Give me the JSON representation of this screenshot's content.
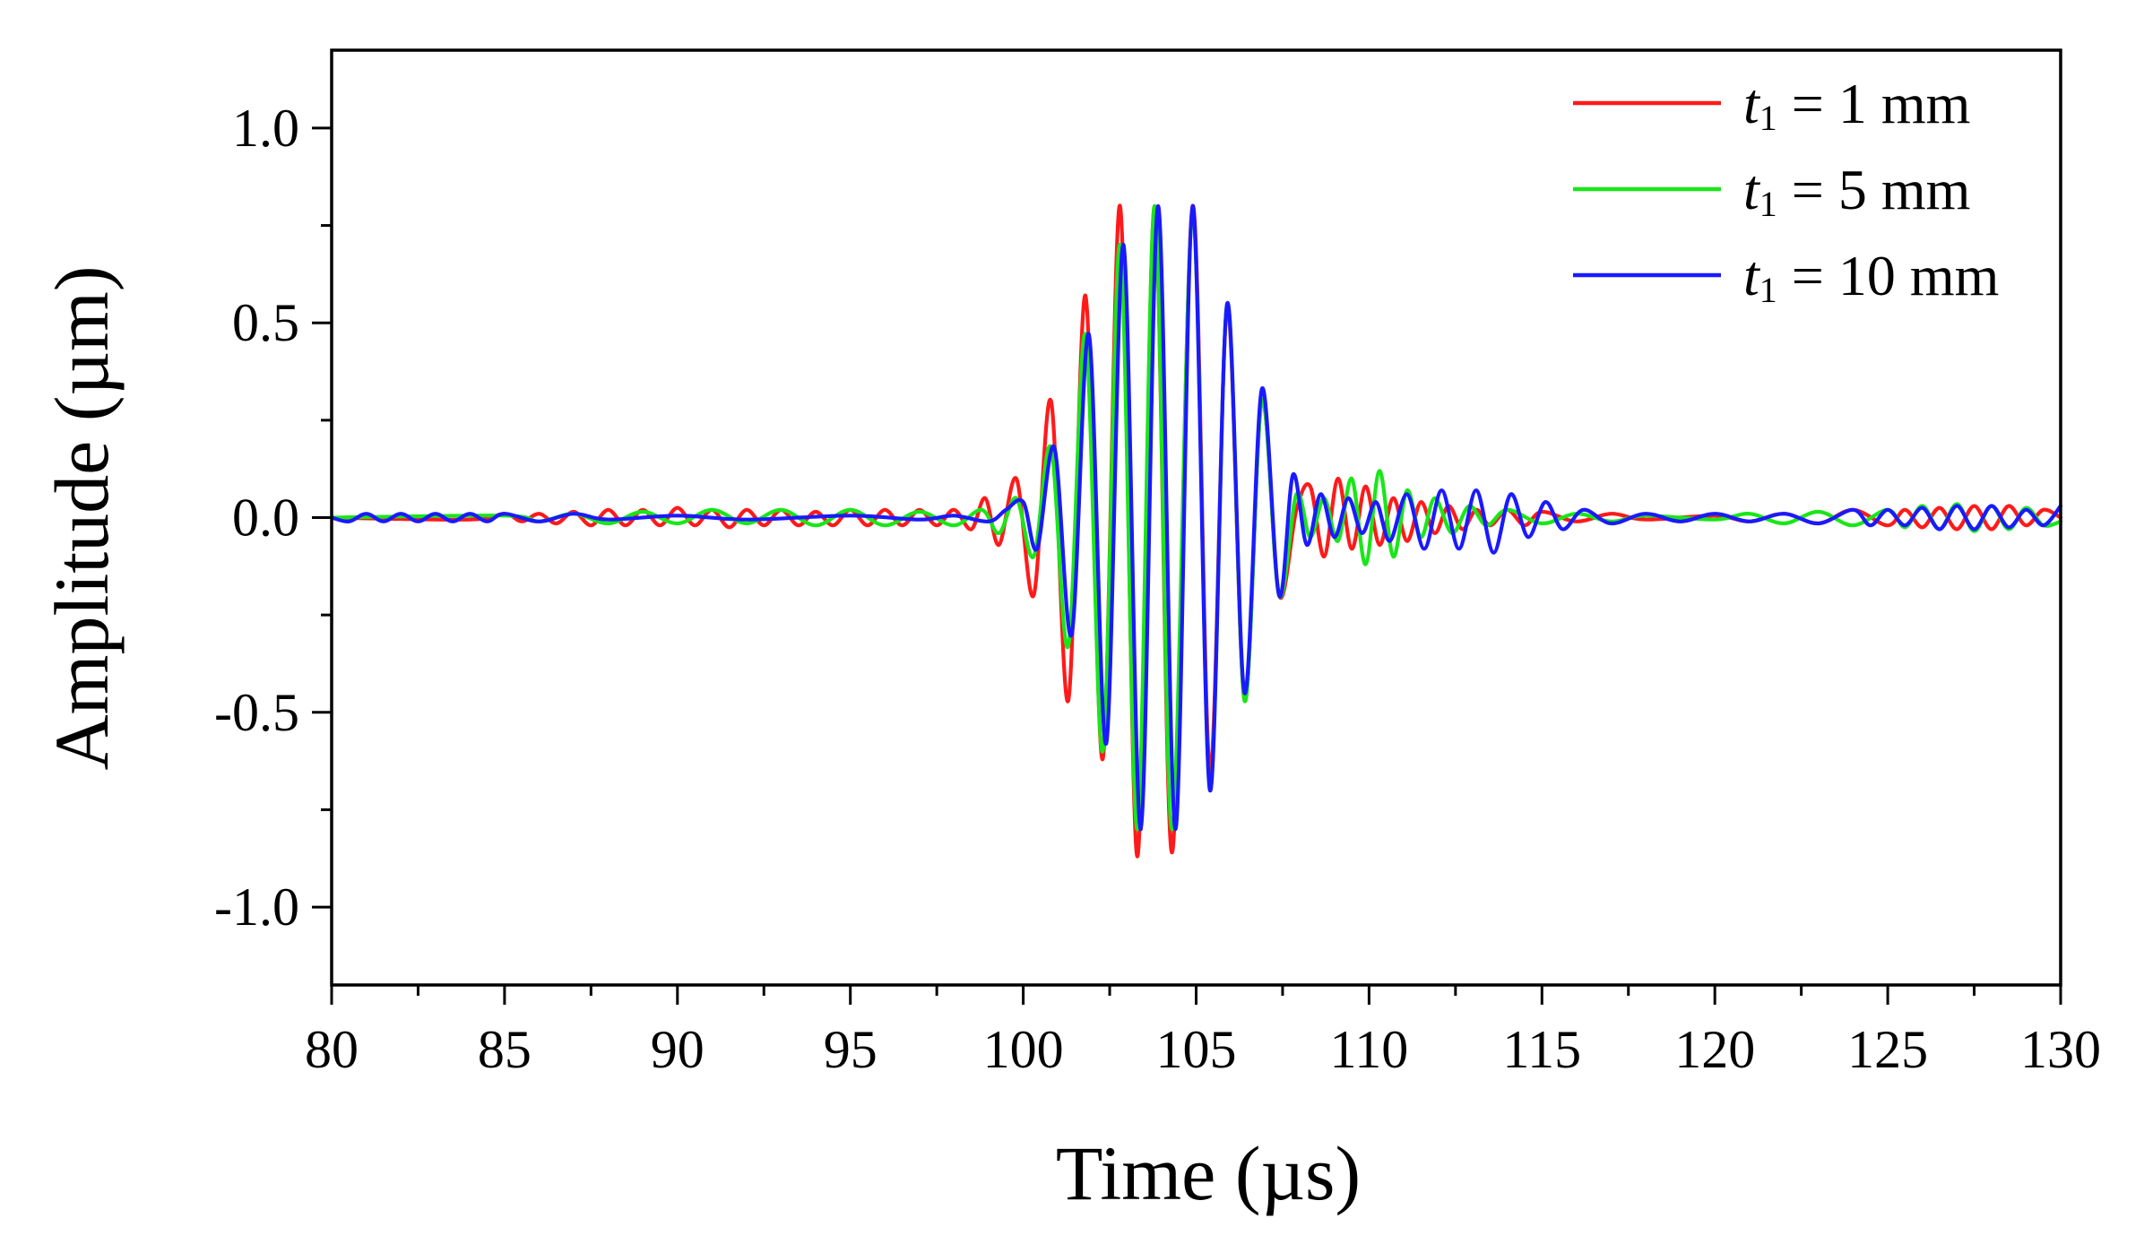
{
  "chart_data": {
    "type": "line",
    "xlabel": "Time (µs)",
    "ylabel": "Amplitude (µm)",
    "xlim": [
      80,
      130
    ],
    "ylim": [
      -1.2,
      1.2
    ],
    "x_ticks": [
      80,
      85,
      90,
      95,
      100,
      105,
      110,
      115,
      120,
      125,
      130
    ],
    "x_tick_labels": [
      "80",
      "85",
      "90",
      "95",
      "100",
      "105",
      "110",
      "115",
      "120",
      "125",
      "130"
    ],
    "y_ticks": [
      1.0,
      0.5,
      0.0,
      -0.5,
      -1.0
    ],
    "y_tick_labels": [
      "1.0",
      "0.5",
      "0.0",
      "-0.5",
      "-1.0"
    ],
    "grid": false,
    "legend_position": "top-right",
    "series": [
      {
        "name": "t1 = 1 mm",
        "legend": {
          "symbol": "t",
          "subscript": "1",
          "text": " = 1 mm"
        },
        "color": "#ff1a1a",
        "points": [
          [
            80,
            0.0
          ],
          [
            84,
            -0.005
          ],
          [
            85,
            0.01
          ],
          [
            85.5,
            -0.01
          ],
          [
            86,
            0.01
          ],
          [
            86.5,
            -0.015
          ],
          [
            87,
            0.015
          ],
          [
            87.5,
            -0.02
          ],
          [
            88,
            0.02
          ],
          [
            88.5,
            -0.02
          ],
          [
            89,
            0.02
          ],
          [
            89.5,
            -0.02
          ],
          [
            90,
            0.025
          ],
          [
            90.5,
            -0.02
          ],
          [
            91,
            0.02
          ],
          [
            91.5,
            -0.025
          ],
          [
            92,
            0.02
          ],
          [
            92.5,
            -0.02
          ],
          [
            93,
            0.02
          ],
          [
            93.5,
            -0.02
          ],
          [
            94,
            0.015
          ],
          [
            94.5,
            -0.02
          ],
          [
            95,
            0.02
          ],
          [
            95.5,
            -0.02
          ],
          [
            96,
            0.02
          ],
          [
            96.5,
            -0.02
          ],
          [
            97,
            0.02
          ],
          [
            97.5,
            -0.02
          ],
          [
            98,
            0.02
          ],
          [
            98.5,
            -0.03
          ],
          [
            98.9,
            0.05
          ],
          [
            99.3,
            -0.07
          ],
          [
            99.8,
            0.1
          ],
          [
            100.3,
            -0.2
          ],
          [
            100.8,
            0.3
          ],
          [
            101.3,
            -0.47
          ],
          [
            101.8,
            0.57
          ],
          [
            102.3,
            -0.62
          ],
          [
            102.8,
            0.8
          ],
          [
            103.3,
            -0.87
          ],
          [
            103.8,
            0.8
          ],
          [
            104.3,
            -0.86
          ],
          [
            104.9,
            0.8
          ],
          [
            105.4,
            -0.65
          ],
          [
            105.9,
            0.54
          ],
          [
            106.4,
            -0.47
          ],
          [
            106.9,
            0.3
          ],
          [
            107.4,
            -0.2
          ],
          [
            107.9,
            0.02
          ],
          [
            108.3,
            0.08
          ],
          [
            108.7,
            -0.1
          ],
          [
            109.1,
            0.1
          ],
          [
            109.5,
            -0.08
          ],
          [
            109.9,
            0.08
          ],
          [
            110.3,
            -0.07
          ],
          [
            110.7,
            0.05
          ],
          [
            111.1,
            -0.06
          ],
          [
            111.5,
            0.04
          ],
          [
            111.9,
            -0.04
          ],
          [
            112.3,
            0.03
          ],
          [
            112.7,
            -0.03
          ],
          [
            113.1,
            0.02
          ],
          [
            113.5,
            -0.02
          ],
          [
            114,
            0.02
          ],
          [
            114.5,
            -0.02
          ],
          [
            115,
            0.015
          ],
          [
            116,
            -0.01
          ],
          [
            117,
            0.01
          ],
          [
            118,
            -0.005
          ],
          [
            120,
            0.005
          ],
          [
            121,
            -0.01
          ],
          [
            122,
            0.01
          ],
          [
            123,
            -0.015
          ],
          [
            124,
            0.02
          ],
          [
            125,
            -0.02
          ],
          [
            125.5,
            0.02
          ],
          [
            126,
            -0.025
          ],
          [
            126.5,
            0.025
          ],
          [
            127,
            -0.03
          ],
          [
            127.5,
            0.03
          ],
          [
            128,
            -0.03
          ],
          [
            128.5,
            0.03
          ],
          [
            129,
            -0.02
          ],
          [
            129.5,
            0.02
          ],
          [
            130,
            0.0
          ]
        ]
      },
      {
        "name": "t1 = 5 mm",
        "legend": {
          "symbol": "t",
          "subscript": "1",
          "text": " = 5 mm"
        },
        "color": "#19e619",
        "points": [
          [
            80,
            0.0
          ],
          [
            85,
            0.005
          ],
          [
            86,
            -0.01
          ],
          [
            87,
            0.01
          ],
          [
            88,
            -0.015
          ],
          [
            89,
            0.015
          ],
          [
            90,
            -0.015
          ],
          [
            91,
            0.02
          ],
          [
            92,
            -0.015
          ],
          [
            93,
            0.02
          ],
          [
            94,
            -0.02
          ],
          [
            95,
            0.02
          ],
          [
            96,
            -0.02
          ],
          [
            97,
            0.015
          ],
          [
            98,
            -0.02
          ],
          [
            98.8,
            0.02
          ],
          [
            99.3,
            -0.04
          ],
          [
            99.8,
            0.05
          ],
          [
            100.3,
            -0.1
          ],
          [
            100.8,
            0.18
          ],
          [
            101.3,
            -0.33
          ],
          [
            101.8,
            0.47
          ],
          [
            102.3,
            -0.6
          ],
          [
            102.8,
            0.7
          ],
          [
            103.3,
            -0.8
          ],
          [
            103.8,
            0.8
          ],
          [
            104.3,
            -0.8
          ],
          [
            104.9,
            0.78
          ],
          [
            105.4,
            -0.7
          ],
          [
            105.9,
            0.55
          ],
          [
            106.4,
            -0.47
          ],
          [
            106.9,
            0.3
          ],
          [
            107.4,
            -0.2
          ],
          [
            107.9,
            0.06
          ],
          [
            108.3,
            -0.05
          ],
          [
            108.7,
            0.05
          ],
          [
            109.1,
            -0.06
          ],
          [
            109.5,
            0.1
          ],
          [
            109.9,
            -0.12
          ],
          [
            110.3,
            0.12
          ],
          [
            110.7,
            -0.1
          ],
          [
            111.1,
            0.07
          ],
          [
            111.5,
            -0.05
          ],
          [
            111.9,
            0.05
          ],
          [
            112.4,
            -0.04
          ],
          [
            112.9,
            0.03
          ],
          [
            113.4,
            -0.02
          ],
          [
            114,
            0.02
          ],
          [
            115,
            -0.015
          ],
          [
            116,
            0.01
          ],
          [
            117,
            -0.01
          ],
          [
            118,
            0.005
          ],
          [
            120,
            -0.005
          ],
          [
            121,
            0.01
          ],
          [
            122,
            -0.015
          ],
          [
            123,
            0.015
          ],
          [
            124,
            -0.02
          ],
          [
            125,
            0.02
          ],
          [
            125.5,
            -0.025
          ],
          [
            126,
            0.03
          ],
          [
            126.5,
            -0.03
          ],
          [
            127,
            0.035
          ],
          [
            127.5,
            -0.035
          ],
          [
            128,
            0.03
          ],
          [
            128.5,
            -0.03
          ],
          [
            129,
            0.025
          ],
          [
            129.5,
            -0.02
          ],
          [
            130,
            -0.01
          ]
        ]
      },
      {
        "name": "t1 = 10 mm",
        "legend": {
          "symbol": "t",
          "subscript": "1",
          "text": " = 10 mm"
        },
        "color": "#1a1aff",
        "points": [
          [
            80,
            0.0
          ],
          [
            80.5,
            -0.01
          ],
          [
            81,
            0.01
          ],
          [
            81.5,
            -0.01
          ],
          [
            82,
            0.01
          ],
          [
            82.5,
            -0.01
          ],
          [
            83,
            0.01
          ],
          [
            83.5,
            -0.01
          ],
          [
            84,
            0.01
          ],
          [
            84.5,
            -0.01
          ],
          [
            85,
            0.01
          ],
          [
            86,
            -0.01
          ],
          [
            87,
            0.01
          ],
          [
            88,
            -0.005
          ],
          [
            90,
            0.005
          ],
          [
            92,
            -0.005
          ],
          [
            95,
            0.005
          ],
          [
            97,
            -0.005
          ],
          [
            98,
            0.005
          ],
          [
            99,
            -0.01
          ],
          [
            99.5,
            0.02
          ],
          [
            100,
            0.04
          ],
          [
            100.4,
            -0.08
          ],
          [
            100.9,
            0.18
          ],
          [
            101.4,
            -0.3
          ],
          [
            101.9,
            0.47
          ],
          [
            102.4,
            -0.58
          ],
          [
            102.9,
            0.7
          ],
          [
            103.4,
            -0.8
          ],
          [
            103.9,
            0.8
          ],
          [
            104.4,
            -0.8
          ],
          [
            104.9,
            0.8
          ],
          [
            105.4,
            -0.7
          ],
          [
            105.9,
            0.55
          ],
          [
            106.4,
            -0.45
          ],
          [
            106.9,
            0.33
          ],
          [
            107.4,
            -0.2
          ],
          [
            107.8,
            0.11
          ],
          [
            108.2,
            -0.07
          ],
          [
            108.6,
            0.06
          ],
          [
            109.0,
            -0.05
          ],
          [
            109.4,
            0.05
          ],
          [
            109.8,
            -0.04
          ],
          [
            110.2,
            0.04
          ],
          [
            110.6,
            -0.06
          ],
          [
            111.1,
            0.06
          ],
          [
            111.6,
            -0.08
          ],
          [
            112.1,
            0.07
          ],
          [
            112.6,
            -0.08
          ],
          [
            113.1,
            0.07
          ],
          [
            113.6,
            -0.09
          ],
          [
            114.1,
            0.06
          ],
          [
            114.6,
            -0.05
          ],
          [
            115.1,
            0.04
          ],
          [
            115.6,
            -0.03
          ],
          [
            116.2,
            0.02
          ],
          [
            117,
            -0.015
          ],
          [
            118,
            0.01
          ],
          [
            119,
            -0.01
          ],
          [
            120,
            0.01
          ],
          [
            121,
            -0.01
          ],
          [
            122,
            0.01
          ],
          [
            123,
            -0.015
          ],
          [
            124,
            0.02
          ],
          [
            124.5,
            -0.02
          ],
          [
            125,
            0.02
          ],
          [
            125.5,
            -0.02
          ],
          [
            126,
            0.025
          ],
          [
            126.5,
            -0.03
          ],
          [
            127,
            0.03
          ],
          [
            127.5,
            -0.03
          ],
          [
            128,
            0.03
          ],
          [
            128.5,
            -0.025
          ],
          [
            129,
            0.02
          ],
          [
            129.5,
            -0.02
          ],
          [
            130,
            0.03
          ]
        ]
      }
    ]
  }
}
